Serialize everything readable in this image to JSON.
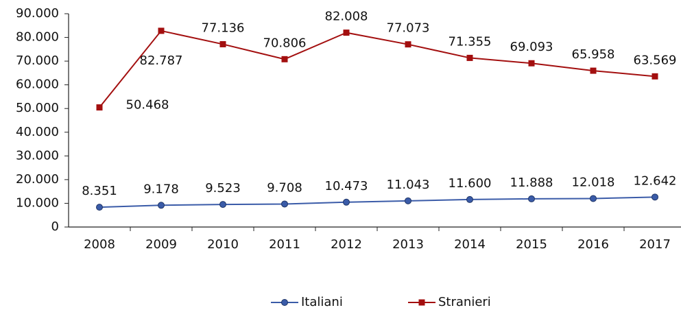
{
  "chart_data": {
    "type": "line",
    "categories": [
      "2008",
      "2009",
      "2010",
      "2011",
      "2012",
      "2013",
      "2014",
      "2015",
      "2016",
      "2017"
    ],
    "series": [
      {
        "name": "Italiani",
        "color": "#3a5ba8",
        "values": [
          8351,
          9178,
          9523,
          9708,
          10473,
          11043,
          11600,
          11888,
          12018,
          12642
        ],
        "value_labels": [
          "8.351",
          "9.178",
          "9.523",
          "9.708",
          "10.473",
          "11.043",
          "11.600",
          "11.888",
          "12.018",
          "12.642"
        ]
      },
      {
        "name": "Stranieri",
        "color": "#a30f0f",
        "values": [
          50468,
          82787,
          77136,
          70806,
          82008,
          77073,
          71355,
          69093,
          65958,
          63569
        ],
        "value_labels": [
          "50.468",
          "82.787",
          "77.136",
          "70.806",
          "82.008",
          "77.073",
          "71.355",
          "69.093",
          "65.958",
          "63.569"
        ]
      }
    ],
    "ylim": [
      0,
      90000
    ],
    "yticks": [
      0,
      {
        "value": 10000,
        "label": "10.000"
      },
      {
        "value": 20000,
        "label": "20.000"
      },
      {
        "value": 30000,
        "label": "30.000"
      },
      {
        "value": 40000,
        "label": "40.000"
      },
      {
        "value": 50000,
        "label": "50.000"
      },
      {
        "value": 60000,
        "label": "60.000"
      },
      {
        "value": 70000,
        "label": "70.000"
      },
      {
        "value": 80000,
        "label": "80.000"
      },
      {
        "value": 90000,
        "label": "90.000"
      }
    ],
    "grid": false,
    "legend": "bottom"
  }
}
